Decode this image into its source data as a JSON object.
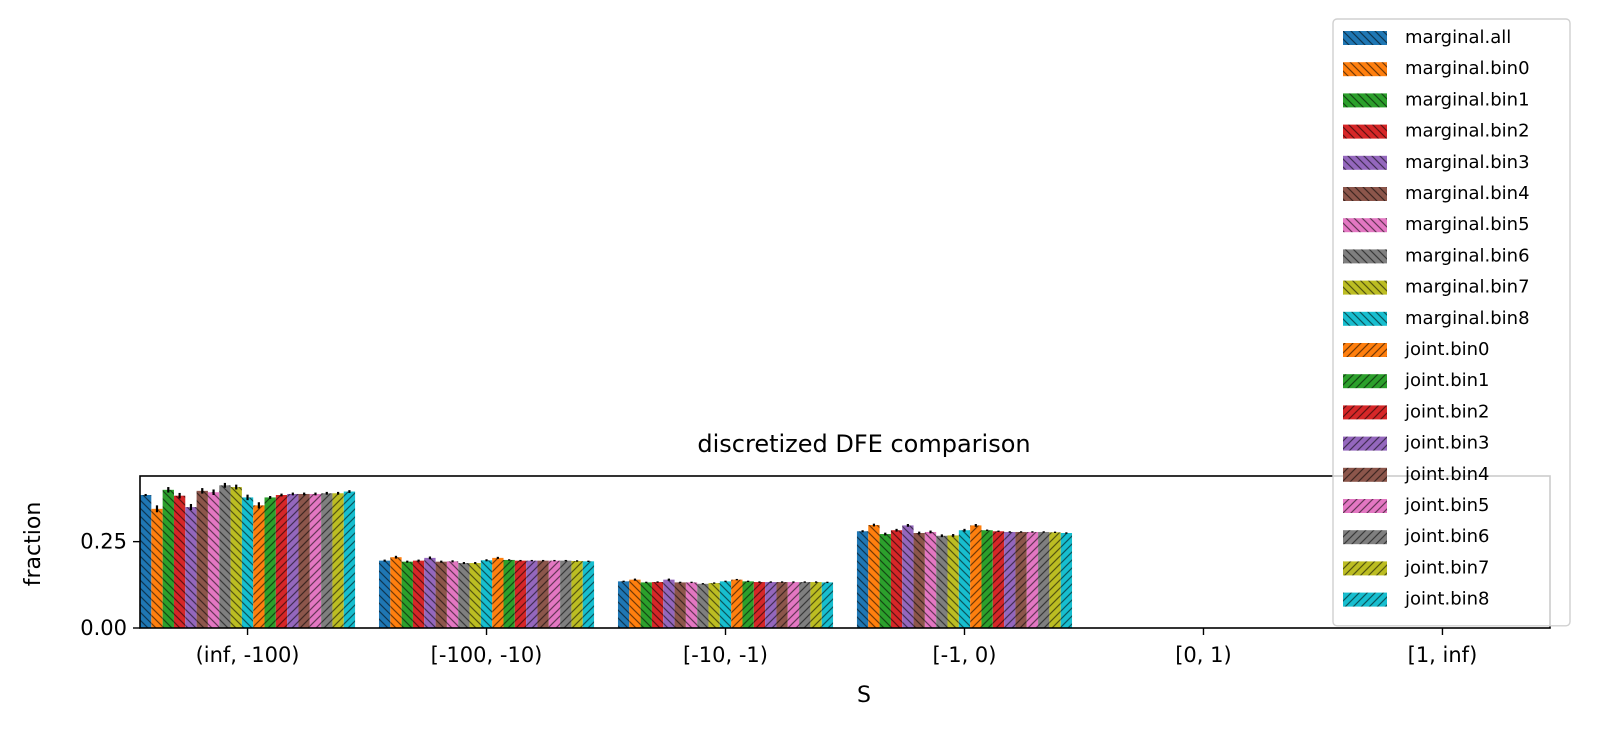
{
  "chart_data": {
    "type": "bar",
    "title": "discretized DFE comparison",
    "xlabel": "S",
    "ylabel": "fraction",
    "categories": [
      "(inf, -100)",
      "[-100, -10)",
      "[-10, -1)",
      "[-1, 0)",
      "[0, 1)",
      "[1, inf)"
    ],
    "ylim": [
      0,
      0.44
    ],
    "yticks": [
      {
        "value": 0.0,
        "label": "0.00"
      },
      {
        "value": 0.25,
        "label": "0.25"
      }
    ],
    "grid": false,
    "legend_position": "top-right",
    "series": [
      {
        "name": "marginal.all",
        "color": "#1f77b4",
        "hatch": "back",
        "values": [
          0.385,
          0.195,
          0.135,
          0.28,
          0,
          0
        ],
        "errors": [
          0.003,
          0.003,
          0.002,
          0.003,
          0,
          0
        ]
      },
      {
        "name": "marginal.bin0",
        "color": "#ff7f0e",
        "hatch": "back",
        "values": [
          0.345,
          0.205,
          0.14,
          0.298,
          0,
          0
        ],
        "errors": [
          0.01,
          0.004,
          0.003,
          0.004,
          0,
          0
        ]
      },
      {
        "name": "marginal.bin1",
        "color": "#2ca02c",
        "hatch": "back",
        "values": [
          0.4,
          0.192,
          0.132,
          0.272,
          0,
          0
        ],
        "errors": [
          0.008,
          0.003,
          0.002,
          0.004,
          0,
          0
        ]
      },
      {
        "name": "marginal.bin2",
        "color": "#d62728",
        "hatch": "back",
        "values": [
          0.383,
          0.195,
          0.133,
          0.283,
          0,
          0
        ],
        "errors": [
          0.008,
          0.003,
          0.002,
          0.004,
          0,
          0
        ]
      },
      {
        "name": "marginal.bin3",
        "color": "#9467bd",
        "hatch": "back",
        "values": [
          0.35,
          0.203,
          0.14,
          0.297,
          0,
          0
        ],
        "errors": [
          0.009,
          0.004,
          0.003,
          0.004,
          0,
          0
        ]
      },
      {
        "name": "marginal.bin4",
        "color": "#8c564b",
        "hatch": "back",
        "values": [
          0.397,
          0.192,
          0.132,
          0.275,
          0,
          0
        ],
        "errors": [
          0.008,
          0.003,
          0.002,
          0.004,
          0,
          0
        ]
      },
      {
        "name": "marginal.bin5",
        "color": "#e377c2",
        "hatch": "back",
        "values": [
          0.393,
          0.193,
          0.132,
          0.278,
          0,
          0
        ],
        "errors": [
          0.008,
          0.003,
          0.002,
          0.004,
          0,
          0
        ]
      },
      {
        "name": "marginal.bin6",
        "color": "#7f7f7f",
        "hatch": "back",
        "values": [
          0.413,
          0.188,
          0.128,
          0.267,
          0,
          0
        ],
        "errors": [
          0.007,
          0.003,
          0.002,
          0.004,
          0,
          0
        ]
      },
      {
        "name": "marginal.bin7",
        "color": "#bcbd22",
        "hatch": "back",
        "values": [
          0.408,
          0.188,
          0.13,
          0.268,
          0,
          0
        ],
        "errors": [
          0.007,
          0.003,
          0.002,
          0.004,
          0,
          0
        ]
      },
      {
        "name": "marginal.bin8",
        "color": "#17becf",
        "hatch": "back",
        "values": [
          0.378,
          0.196,
          0.135,
          0.283,
          0,
          0
        ],
        "errors": [
          0.008,
          0.003,
          0.002,
          0.004,
          0,
          0
        ]
      },
      {
        "name": "joint.bin0",
        "color": "#ff7f0e",
        "hatch": "fwd",
        "values": [
          0.355,
          0.203,
          0.14,
          0.297,
          0,
          0
        ],
        "errors": [
          0.009,
          0.003,
          0.002,
          0.004,
          0,
          0
        ]
      },
      {
        "name": "joint.bin1",
        "color": "#2ca02c",
        "hatch": "fwd",
        "values": [
          0.378,
          0.197,
          0.135,
          0.283,
          0,
          0
        ],
        "errors": [
          0.004,
          0.002,
          0.002,
          0.002,
          0,
          0
        ]
      },
      {
        "name": "joint.bin2",
        "color": "#d62728",
        "hatch": "fwd",
        "values": [
          0.385,
          0.195,
          0.133,
          0.28,
          0,
          0
        ],
        "errors": [
          0.004,
          0.002,
          0.002,
          0.002,
          0,
          0
        ]
      },
      {
        "name": "joint.bin3",
        "color": "#9467bd",
        "hatch": "fwd",
        "values": [
          0.388,
          0.195,
          0.133,
          0.278,
          0,
          0
        ],
        "errors": [
          0.004,
          0.002,
          0.002,
          0.002,
          0,
          0
        ]
      },
      {
        "name": "joint.bin4",
        "color": "#8c564b",
        "hatch": "fwd",
        "values": [
          0.388,
          0.195,
          0.133,
          0.278,
          0,
          0
        ],
        "errors": [
          0.004,
          0.002,
          0.002,
          0.002,
          0,
          0
        ]
      },
      {
        "name": "joint.bin5",
        "color": "#e377c2",
        "hatch": "fwd",
        "values": [
          0.388,
          0.195,
          0.133,
          0.278,
          0,
          0
        ],
        "errors": [
          0.004,
          0.002,
          0.002,
          0.002,
          0,
          0
        ]
      },
      {
        "name": "joint.bin6",
        "color": "#7f7f7f",
        "hatch": "fwd",
        "values": [
          0.39,
          0.195,
          0.133,
          0.278,
          0,
          0
        ],
        "errors": [
          0.004,
          0.002,
          0.002,
          0.002,
          0,
          0
        ]
      },
      {
        "name": "joint.bin7",
        "color": "#bcbd22",
        "hatch": "fwd",
        "values": [
          0.39,
          0.194,
          0.133,
          0.277,
          0,
          0
        ],
        "errors": [
          0.004,
          0.002,
          0.002,
          0.002,
          0,
          0
        ]
      },
      {
        "name": "joint.bin8",
        "color": "#17becf",
        "hatch": "fwd",
        "values": [
          0.395,
          0.193,
          0.132,
          0.275,
          0,
          0
        ],
        "errors": [
          0.004,
          0.002,
          0.002,
          0.002,
          0,
          0
        ]
      }
    ]
  }
}
